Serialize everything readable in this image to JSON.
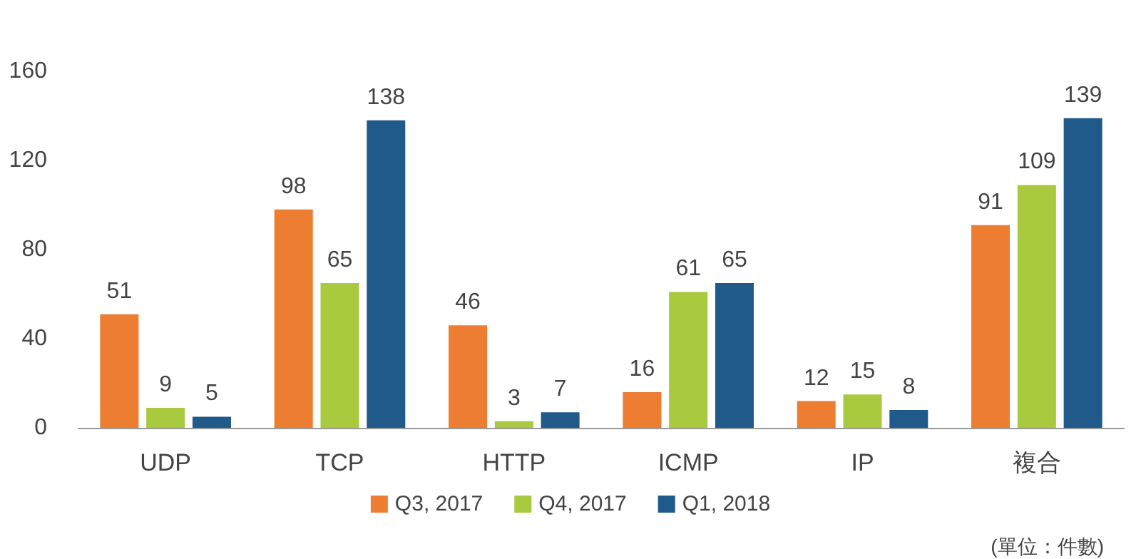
{
  "chart_data": {
    "type": "bar",
    "categories": [
      "UDP",
      "TCP",
      "HTTP",
      "ICMP",
      "IP",
      "複合"
    ],
    "series": [
      {
        "name": "Q3, 2017",
        "color": "#ed7d31",
        "values": [
          51,
          98,
          46,
          16,
          12,
          91
        ]
      },
      {
        "name": "Q4, 2017",
        "color": "#a9c93e",
        "values": [
          9,
          65,
          3,
          61,
          15,
          109
        ]
      },
      {
        "name": "Q1, 2018",
        "color": "#1f5a8a",
        "values": [
          5,
          138,
          7,
          65,
          8,
          139
        ]
      }
    ],
    "ylim": [
      0,
      160
    ],
    "yticks": [
      0,
      40,
      80,
      120,
      160
    ],
    "grid": false,
    "legend": "bottom",
    "data_labels": true,
    "annotations": [
      "(單位：件數)"
    ]
  }
}
